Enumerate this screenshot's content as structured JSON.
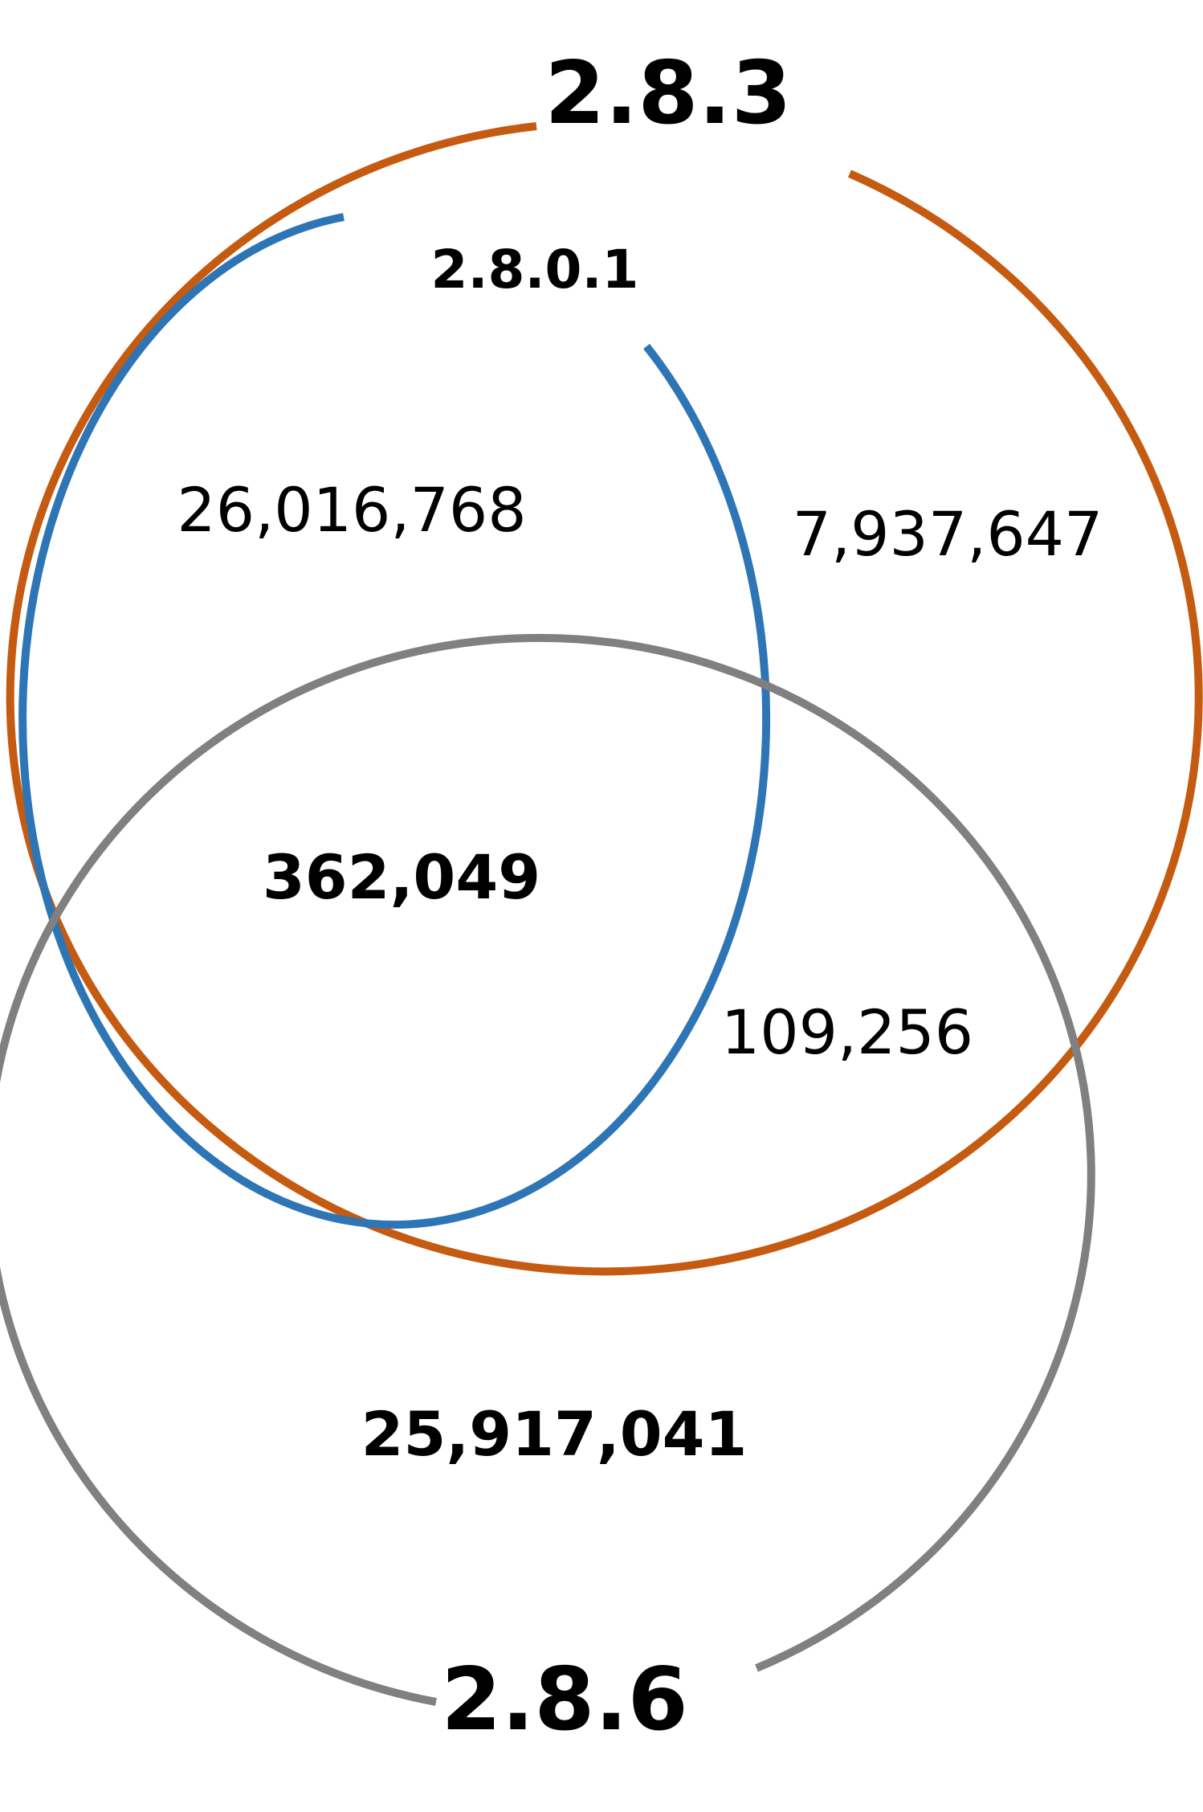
{
  "sets": {
    "v2801": {
      "label": "2.8.0.1",
      "color": "#2E75B6"
    },
    "v283": {
      "label": "2.8.3",
      "color": "#C55A11"
    },
    "v286": {
      "label": "2.8.6",
      "color": "#808080"
    }
  },
  "regions": {
    "v2801_v283": "26,016,768",
    "v283_only": "7,937,647",
    "all_three": "362,049",
    "v283_v286": "109,256",
    "v286_only": "25,917,041"
  }
}
